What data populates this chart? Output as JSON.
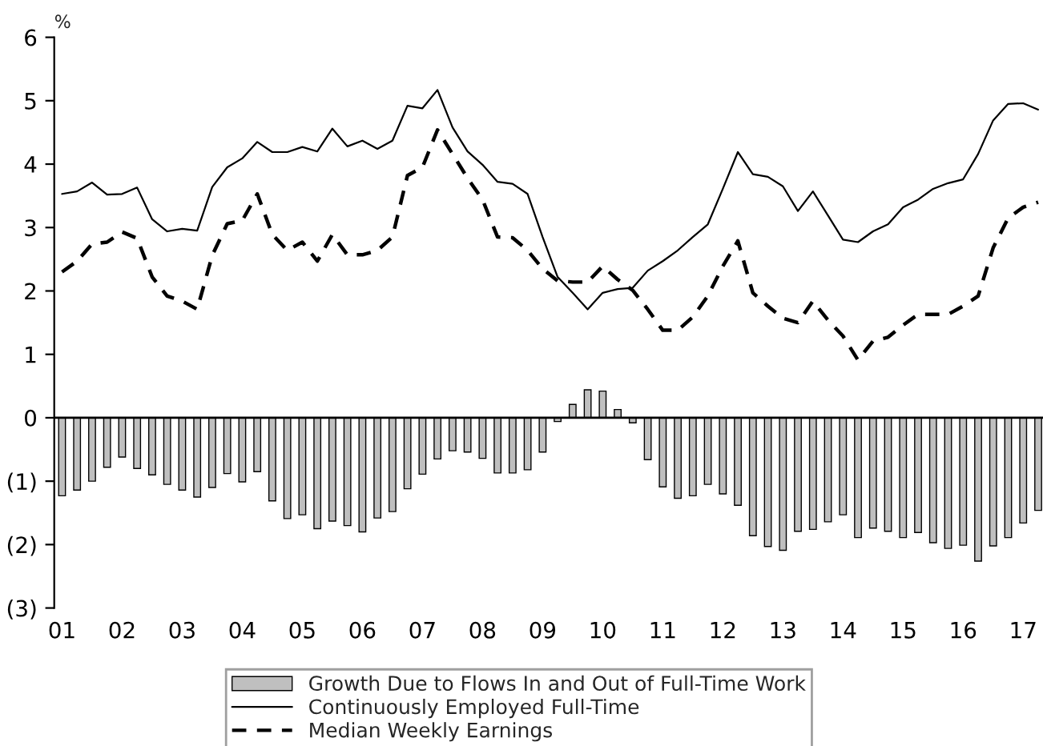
{
  "chart_data": {
    "type": "bar",
    "ylabel": "%",
    "x": [
      1,
      1.25,
      1.5,
      1.75,
      2,
      2.25,
      2.5,
      2.75,
      3,
      3.25,
      3.5,
      3.75,
      4,
      4.25,
      4.5,
      4.75,
      5,
      5.25,
      5.5,
      5.75,
      6,
      6.25,
      6.5,
      6.75,
      7,
      7.25,
      7.5,
      7.75,
      8,
      8.25,
      8.5,
      8.75,
      9,
      9.25,
      9.5,
      9.75,
      10,
      10.25,
      10.5,
      10.75,
      11,
      11.25,
      11.5,
      11.75,
      12,
      12.25,
      12.5,
      12.75,
      13,
      13.25,
      13.5,
      13.75,
      14,
      14.25,
      14.5,
      14.75,
      15,
      15.25,
      15.5,
      15.75,
      16,
      16.25,
      16.5,
      16.75,
      17,
      17.25
    ],
    "series": [
      {
        "name": "Growth Due to Flows In and Out of Full-Time Work",
        "color": "#bfbfbf",
        "values": [
          -1.23,
          -1.14,
          -1.0,
          -0.78,
          -0.62,
          -0.8,
          -0.9,
          -1.05,
          -1.14,
          -1.25,
          -1.1,
          -0.88,
          -1.01,
          -0.85,
          -1.31,
          -1.59,
          -1.53,
          -1.75,
          -1.63,
          -1.7,
          -1.8,
          -1.58,
          -1.48,
          -1.12,
          -0.89,
          -0.65,
          -0.52,
          -0.54,
          -0.64,
          -0.87,
          -0.87,
          -0.82,
          -0.54,
          -0.06,
          0.21,
          0.44,
          0.42,
          0.13,
          -0.08,
          -0.66,
          -1.09,
          -1.27,
          -1.23,
          -1.05,
          -1.2,
          -1.38,
          -1.86,
          -2.03,
          -2.09,
          -1.79,
          -1.76,
          -1.64,
          -1.53,
          -1.89,
          -1.74,
          -1.79,
          -1.89,
          -1.81,
          -1.97,
          -2.06,
          -2.01,
          -2.26,
          -2.02,
          -1.89,
          -1.66,
          -1.46
        ]
      },
      {
        "name": "Continuously Employed Full-Time",
        "type": "line",
        "line_style": "solid",
        "color": "#000000",
        "values": [
          3.53,
          3.57,
          3.71,
          3.52,
          3.53,
          3.63,
          3.13,
          2.94,
          2.98,
          2.95,
          3.64,
          3.95,
          4.09,
          4.35,
          4.19,
          4.19,
          4.27,
          4.2,
          4.56,
          4.28,
          4.37,
          4.24,
          4.37,
          4.92,
          4.88,
          5.17,
          4.58,
          4.2,
          3.99,
          3.72,
          3.69,
          3.53,
          2.85,
          2.22,
          1.97,
          1.71,
          1.97,
          2.03,
          2.05,
          2.32,
          2.47,
          2.64,
          2.85,
          3.05,
          3.61,
          4.19,
          3.84,
          3.8,
          3.65,
          3.26,
          3.57,
          3.19,
          2.81,
          2.77,
          2.94,
          3.05,
          3.32,
          3.44,
          3.61,
          3.7,
          3.76,
          4.16,
          4.69,
          4.95,
          4.96,
          4.86
        ]
      },
      {
        "name": "Median Weekly Earnings",
        "type": "line",
        "line_style": "dashed",
        "color": "#000000",
        "values": [
          2.3,
          2.47,
          2.74,
          2.77,
          2.93,
          2.83,
          2.22,
          1.92,
          1.84,
          1.71,
          2.56,
          3.06,
          3.11,
          3.53,
          2.89,
          2.64,
          2.77,
          2.47,
          2.89,
          2.57,
          2.57,
          2.64,
          2.85,
          3.82,
          3.95,
          4.54,
          4.16,
          3.78,
          3.44,
          2.85,
          2.84,
          2.64,
          2.35,
          2.16,
          2.14,
          2.14,
          2.39,
          2.18,
          2.01,
          1.71,
          1.38,
          1.38,
          1.59,
          1.92,
          2.39,
          2.79,
          1.97,
          1.76,
          1.57,
          1.5,
          1.84,
          1.54,
          1.29,
          0.91,
          1.21,
          1.27,
          1.46,
          1.63,
          1.63,
          1.63,
          1.76,
          1.92,
          2.68,
          3.15,
          3.32,
          3.4
        ]
      }
    ],
    "xlim": [
      0.87,
      17.33
    ],
    "xticks": [
      {
        "value": 1,
        "label": "01"
      },
      {
        "value": 2,
        "label": "02"
      },
      {
        "value": 3,
        "label": "03"
      },
      {
        "value": 4,
        "label": "04"
      },
      {
        "value": 5,
        "label": "05"
      },
      {
        "value": 6,
        "label": "06"
      },
      {
        "value": 7,
        "label": "07"
      },
      {
        "value": 8,
        "label": "08"
      },
      {
        "value": 9,
        "label": "09"
      },
      {
        "value": 10,
        "label": "10"
      },
      {
        "value": 11,
        "label": "11"
      },
      {
        "value": 12,
        "label": "12"
      },
      {
        "value": 13,
        "label": "13"
      },
      {
        "value": 14,
        "label": "14"
      },
      {
        "value": 15,
        "label": "15"
      },
      {
        "value": 16,
        "label": "16"
      },
      {
        "value": 17,
        "label": "17"
      }
    ],
    "ylim": [
      -3,
      6
    ],
    "yticks": [
      {
        "value": -3,
        "label": "(3)"
      },
      {
        "value": -2,
        "label": "(2)"
      },
      {
        "value": -1,
        "label": "(1)"
      },
      0,
      1,
      2,
      3,
      4,
      5,
      6
    ],
    "grid": false,
    "ref_lines": [
      {
        "axis": "y",
        "value": 0,
        "color": "#000000",
        "line_style": "solid"
      }
    ],
    "legend": "bottom"
  }
}
